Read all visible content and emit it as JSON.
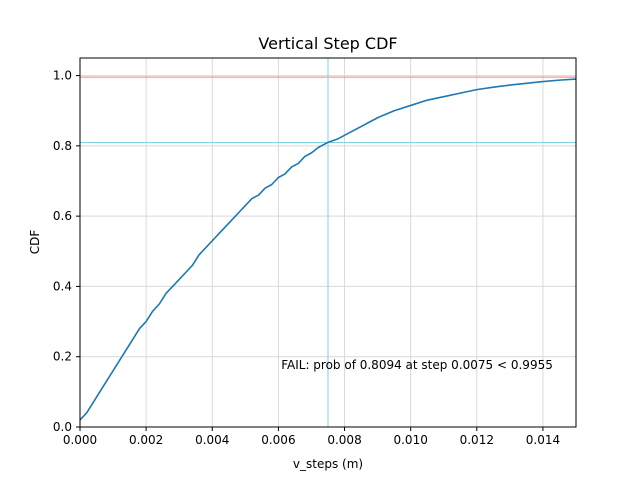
{
  "chart_data": {
    "type": "line",
    "title": "Vertical Step CDF",
    "xlabel": "v_steps (m)",
    "ylabel": "CDF",
    "xlim": [
      0,
      0.015
    ],
    "ylim": [
      0,
      1.05
    ],
    "xticks": [
      0,
      0.002,
      0.004,
      0.006,
      0.008,
      0.01,
      0.012,
      0.014
    ],
    "xtick_labels": [
      "0.000",
      "0.002",
      "0.004",
      "0.006",
      "0.008",
      "0.010",
      "0.012",
      "0.014"
    ],
    "yticks": [
      0,
      0.2,
      0.4,
      0.6,
      0.8,
      1.0
    ],
    "ytick_labels": [
      "0.0",
      "0.2",
      "0.4",
      "0.6",
      "0.8",
      "1.0"
    ],
    "grid": true,
    "series": [
      {
        "color": "#1f77b4",
        "x": [
          0,
          0.0002,
          0.0004,
          0.0006,
          0.0008,
          0.001,
          0.0012,
          0.0014,
          0.0016,
          0.0018,
          0.002,
          0.0022,
          0.0024,
          0.0026,
          0.0028,
          0.003,
          0.0032,
          0.0034,
          0.0036,
          0.0038,
          0.004,
          0.0042,
          0.0044,
          0.0046,
          0.0048,
          0.005,
          0.0052,
          0.0054,
          0.0056,
          0.0058,
          0.006,
          0.0062,
          0.0064,
          0.0066,
          0.0068,
          0.007,
          0.0072,
          0.0075,
          0.0078,
          0.008,
          0.0082,
          0.0085,
          0.0088,
          0.009,
          0.0095,
          0.01,
          0.0105,
          0.011,
          0.0115,
          0.012,
          0.0125,
          0.013,
          0.0135,
          0.014,
          0.0145,
          0.015
        ],
        "y": [
          0.02,
          0.04,
          0.07,
          0.1,
          0.13,
          0.16,
          0.19,
          0.22,
          0.25,
          0.28,
          0.3,
          0.33,
          0.35,
          0.38,
          0.4,
          0.42,
          0.44,
          0.46,
          0.49,
          0.51,
          0.53,
          0.55,
          0.57,
          0.59,
          0.61,
          0.63,
          0.65,
          0.66,
          0.68,
          0.69,
          0.71,
          0.72,
          0.74,
          0.75,
          0.77,
          0.78,
          0.795,
          0.81,
          0.82,
          0.83,
          0.84,
          0.855,
          0.87,
          0.88,
          0.9,
          0.915,
          0.93,
          0.94,
          0.95,
          0.96,
          0.967,
          0.973,
          0.978,
          0.983,
          0.987,
          0.99
        ]
      }
    ],
    "hlines": [
      {
        "y": 0.9955,
        "color": "#ff7f7f"
      },
      {
        "y": 0.8094,
        "color": "#7fd3dd"
      }
    ],
    "vlines": [
      {
        "x": 0.0075,
        "color": "#7fd3dd"
      }
    ],
    "annotation": {
      "text": "FAIL: prob of 0.8094 at step 0.0075 < 0.9955",
      "x": 0.0143,
      "y": 0.165,
      "color": "#ff0000"
    }
  }
}
